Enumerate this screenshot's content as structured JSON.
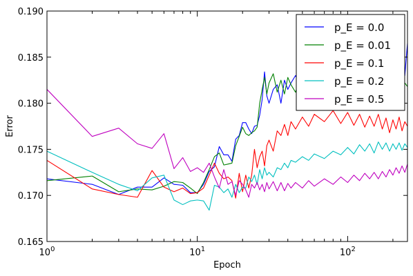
{
  "chart_data": {
    "type": "line",
    "title": "",
    "xlabel": "Epoch",
    "ylabel": "Error",
    "x_scale": "log",
    "xlim": [
      1,
      250
    ],
    "ylim": [
      0.165,
      0.19
    ],
    "x_ticks": [
      {
        "value": 1,
        "base": "10",
        "exp": "0"
      },
      {
        "value": 10,
        "base": "10",
        "exp": "1"
      },
      {
        "value": 100,
        "base": "10",
        "exp": "2"
      }
    ],
    "y_ticks": [
      {
        "value": 0.165,
        "label": "0.165"
      },
      {
        "value": 0.17,
        "label": "0.170"
      },
      {
        "value": 0.175,
        "label": "0.175"
      },
      {
        "value": 0.18,
        "label": "0.180"
      },
      {
        "value": 0.185,
        "label": "0.185"
      },
      {
        "value": 0.19,
        "label": "0.190"
      }
    ],
    "grid": false,
    "legend_position": "top-right",
    "series": [
      {
        "name": "p_E = 0.0",
        "color": "#0000ff",
        "points": [
          [
            1,
            0.1718
          ],
          [
            2,
            0.1712
          ],
          [
            3,
            0.1701
          ],
          [
            4,
            0.1709
          ],
          [
            5,
            0.1709
          ],
          [
            6,
            0.1719
          ],
          [
            7,
            0.1712
          ],
          [
            8,
            0.1711
          ],
          [
            9,
            0.1703
          ],
          [
            10,
            0.1703
          ],
          [
            11,
            0.1712
          ],
          [
            12,
            0.1726
          ],
          [
            13,
            0.1731
          ],
          [
            14,
            0.1753
          ],
          [
            15,
            0.1744
          ],
          [
            16,
            0.1744
          ],
          [
            17,
            0.1737
          ],
          [
            18,
            0.1761
          ],
          [
            19,
            0.1765
          ],
          [
            20,
            0.1779
          ],
          [
            21,
            0.1779
          ],
          [
            22,
            0.1772
          ],
          [
            23,
            0.1767
          ],
          [
            24,
            0.1775
          ],
          [
            25,
            0.1776
          ],
          [
            26,
            0.1787
          ],
          [
            27,
            0.1804
          ],
          [
            28,
            0.1834
          ],
          [
            29,
            0.1808
          ],
          [
            30,
            0.18
          ],
          [
            32,
            0.1815
          ],
          [
            34,
            0.182
          ],
          [
            36,
            0.18
          ],
          [
            38,
            0.1825
          ],
          [
            40,
            0.1815
          ],
          [
            42,
            0.1822
          ],
          [
            45,
            0.183
          ],
          [
            50,
            0.1815
          ],
          [
            55,
            0.1838
          ],
          [
            60,
            0.1822
          ],
          [
            70,
            0.181
          ],
          [
            80,
            0.1835
          ],
          [
            90,
            0.1822
          ],
          [
            100,
            0.1828
          ],
          [
            110,
            0.1812
          ],
          [
            120,
            0.183
          ],
          [
            130,
            0.1818
          ],
          [
            140,
            0.1826
          ],
          [
            150,
            0.1814
          ],
          [
            160,
            0.1832
          ],
          [
            170,
            0.1822
          ],
          [
            180,
            0.1835
          ],
          [
            190,
            0.1826
          ],
          [
            200,
            0.182
          ],
          [
            210,
            0.1838
          ],
          [
            220,
            0.1826
          ],
          [
            230,
            0.1848
          ],
          [
            240,
            0.183
          ],
          [
            250,
            0.1865
          ]
        ]
      },
      {
        "name": "p_E = 0.01",
        "color": "#008000",
        "points": [
          [
            1,
            0.1716
          ],
          [
            2,
            0.1721
          ],
          [
            3,
            0.1704
          ],
          [
            4,
            0.1707
          ],
          [
            5,
            0.1706
          ],
          [
            6,
            0.171
          ],
          [
            7,
            0.1715
          ],
          [
            8,
            0.1714
          ],
          [
            9,
            0.1708
          ],
          [
            10,
            0.1702
          ],
          [
            11,
            0.1714
          ],
          [
            12,
            0.1728
          ],
          [
            13,
            0.1742
          ],
          [
            14,
            0.1746
          ],
          [
            15,
            0.1733
          ],
          [
            16,
            0.1734
          ],
          [
            17,
            0.1735
          ],
          [
            18,
            0.1754
          ],
          [
            19,
            0.1764
          ],
          [
            20,
            0.1774
          ],
          [
            21,
            0.1767
          ],
          [
            22,
            0.1765
          ],
          [
            23,
            0.1768
          ],
          [
            24,
            0.177
          ],
          [
            25,
            0.1774
          ],
          [
            26,
            0.18
          ],
          [
            27,
            0.1815
          ],
          [
            28,
            0.1828
          ],
          [
            29,
            0.181
          ],
          [
            30,
            0.1822
          ],
          [
            32,
            0.1832
          ],
          [
            34,
            0.1812
          ],
          [
            36,
            0.1825
          ],
          [
            38,
            0.181
          ],
          [
            40,
            0.1828
          ],
          [
            42,
            0.182
          ],
          [
            45,
            0.1812
          ],
          [
            50,
            0.1835
          ],
          [
            55,
            0.182
          ],
          [
            60,
            0.1828
          ],
          [
            70,
            0.181
          ],
          [
            80,
            0.1826
          ],
          [
            90,
            0.1815
          ],
          [
            100,
            0.1824
          ],
          [
            110,
            0.181
          ],
          [
            120,
            0.1818
          ],
          [
            130,
            0.1808
          ],
          [
            140,
            0.1825
          ],
          [
            150,
            0.1815
          ],
          [
            160,
            0.182
          ],
          [
            170,
            0.1806
          ],
          [
            180,
            0.1822
          ],
          [
            190,
            0.1812
          ],
          [
            200,
            0.182
          ],
          [
            210,
            0.181
          ],
          [
            220,
            0.1826
          ],
          [
            230,
            0.1812
          ],
          [
            240,
            0.1822
          ],
          [
            250,
            0.1818
          ]
        ]
      },
      {
        "name": "p_E = 0.1",
        "color": "#ff0000",
        "points": [
          [
            1,
            0.1738
          ],
          [
            2,
            0.1707
          ],
          [
            3,
            0.1701
          ],
          [
            4,
            0.1698
          ],
          [
            5,
            0.1727
          ],
          [
            6,
            0.1709
          ],
          [
            7,
            0.1704
          ],
          [
            8,
            0.1708
          ],
          [
            9,
            0.1702
          ],
          [
            10,
            0.1703
          ],
          [
            11,
            0.1708
          ],
          [
            12,
            0.1722
          ],
          [
            13,
            0.1735
          ],
          [
            14,
            0.1724
          ],
          [
            15,
            0.1718
          ],
          [
            16,
            0.172
          ],
          [
            17,
            0.1716
          ],
          [
            18,
            0.1697
          ],
          [
            19,
            0.1724
          ],
          [
            20,
            0.1704
          ],
          [
            21,
            0.1722
          ],
          [
            22,
            0.1708
          ],
          [
            23,
            0.1722
          ],
          [
            24,
            0.175
          ],
          [
            25,
            0.173
          ],
          [
            26,
            0.1742
          ],
          [
            27,
            0.1748
          ],
          [
            28,
            0.1732
          ],
          [
            29,
            0.1754
          ],
          [
            30,
            0.176
          ],
          [
            32,
            0.1748
          ],
          [
            34,
            0.177
          ],
          [
            36,
            0.1765
          ],
          [
            38,
            0.1777
          ],
          [
            40,
            0.1765
          ],
          [
            42,
            0.178
          ],
          [
            45,
            0.1772
          ],
          [
            50,
            0.1785
          ],
          [
            55,
            0.1775
          ],
          [
            60,
            0.1788
          ],
          [
            70,
            0.178
          ],
          [
            80,
            0.1792
          ],
          [
            90,
            0.1778
          ],
          [
            100,
            0.179
          ],
          [
            110,
            0.1776
          ],
          [
            120,
            0.1788
          ],
          [
            130,
            0.1774
          ],
          [
            140,
            0.1786
          ],
          [
            150,
            0.1775
          ],
          [
            160,
            0.1788
          ],
          [
            170,
            0.1772
          ],
          [
            180,
            0.1784
          ],
          [
            190,
            0.1768
          ],
          [
            200,
            0.1782
          ],
          [
            210,
            0.1772
          ],
          [
            220,
            0.1785
          ],
          [
            230,
            0.177
          ],
          [
            240,
            0.178
          ],
          [
            250,
            0.1775
          ]
        ]
      },
      {
        "name": "p_E = 0.2",
        "color": "#00bfbf",
        "points": [
          [
            1,
            0.1748
          ],
          [
            2,
            0.1725
          ],
          [
            3,
            0.1712
          ],
          [
            4,
            0.1705
          ],
          [
            5,
            0.1719
          ],
          [
            6,
            0.1722
          ],
          [
            7,
            0.1695
          ],
          [
            8,
            0.169
          ],
          [
            9,
            0.1694
          ],
          [
            10,
            0.1695
          ],
          [
            11,
            0.1694
          ],
          [
            12,
            0.1684
          ],
          [
            13,
            0.1711
          ],
          [
            14,
            0.1709
          ],
          [
            15,
            0.1703
          ],
          [
            16,
            0.1707
          ],
          [
            17,
            0.1698
          ],
          [
            18,
            0.1712
          ],
          [
            19,
            0.1703
          ],
          [
            20,
            0.1709
          ],
          [
            21,
            0.1708
          ],
          [
            22,
            0.172
          ],
          [
            23,
            0.1715
          ],
          [
            24,
            0.1722
          ],
          [
            25,
            0.1712
          ],
          [
            26,
            0.1728
          ],
          [
            27,
            0.1718
          ],
          [
            28,
            0.173
          ],
          [
            29,
            0.1722
          ],
          [
            30,
            0.1725
          ],
          [
            32,
            0.172
          ],
          [
            34,
            0.173
          ],
          [
            36,
            0.1728
          ],
          [
            38,
            0.1735
          ],
          [
            40,
            0.173
          ],
          [
            42,
            0.1738
          ],
          [
            45,
            0.1736
          ],
          [
            50,
            0.1742
          ],
          [
            55,
            0.1738
          ],
          [
            60,
            0.1745
          ],
          [
            70,
            0.174
          ],
          [
            80,
            0.1748
          ],
          [
            90,
            0.1744
          ],
          [
            100,
            0.1752
          ],
          [
            110,
            0.1745
          ],
          [
            120,
            0.1755
          ],
          [
            130,
            0.1748
          ],
          [
            140,
            0.1756
          ],
          [
            150,
            0.1746
          ],
          [
            160,
            0.1758
          ],
          [
            170,
            0.175
          ],
          [
            180,
            0.1757
          ],
          [
            190,
            0.1748
          ],
          [
            200,
            0.1756
          ],
          [
            210,
            0.175
          ],
          [
            220,
            0.1757
          ],
          [
            230,
            0.1749
          ],
          [
            240,
            0.1756
          ],
          [
            250,
            0.1752
          ]
        ]
      },
      {
        "name": "p_E = 0.5",
        "color": "#bf00bf",
        "points": [
          [
            1,
            0.1815
          ],
          [
            2,
            0.1764
          ],
          [
            3,
            0.1773
          ],
          [
            4,
            0.1756
          ],
          [
            5,
            0.1751
          ],
          [
            6,
            0.1767
          ],
          [
            7,
            0.1729
          ],
          [
            8,
            0.1741
          ],
          [
            9,
            0.1726
          ],
          [
            10,
            0.173
          ],
          [
            11,
            0.1725
          ],
          [
            12,
            0.1735
          ],
          [
            13,
            0.172
          ],
          [
            14,
            0.1708
          ],
          [
            15,
            0.1728
          ],
          [
            16,
            0.1712
          ],
          [
            17,
            0.1715
          ],
          [
            18,
            0.17
          ],
          [
            19,
            0.1716
          ],
          [
            20,
            0.1712
          ],
          [
            21,
            0.1706
          ],
          [
            22,
            0.1698
          ],
          [
            23,
            0.1712
          ],
          [
            24,
            0.1708
          ],
          [
            25,
            0.1714
          ],
          [
            26,
            0.1706
          ],
          [
            27,
            0.1712
          ],
          [
            28,
            0.1704
          ],
          [
            29,
            0.1714
          ],
          [
            30,
            0.1707
          ],
          [
            32,
            0.1715
          ],
          [
            34,
            0.1705
          ],
          [
            36,
            0.1714
          ],
          [
            38,
            0.1705
          ],
          [
            40,
            0.1713
          ],
          [
            42,
            0.1708
          ],
          [
            45,
            0.1714
          ],
          [
            50,
            0.1708
          ],
          [
            55,
            0.1716
          ],
          [
            60,
            0.171
          ],
          [
            70,
            0.1718
          ],
          [
            80,
            0.1712
          ],
          [
            90,
            0.172
          ],
          [
            100,
            0.1714
          ],
          [
            110,
            0.1722
          ],
          [
            120,
            0.1716
          ],
          [
            130,
            0.1724
          ],
          [
            140,
            0.1718
          ],
          [
            150,
            0.1725
          ],
          [
            160,
            0.1718
          ],
          [
            170,
            0.1726
          ],
          [
            180,
            0.172
          ],
          [
            190,
            0.1728
          ],
          [
            200,
            0.1722
          ],
          [
            210,
            0.173
          ],
          [
            220,
            0.1724
          ],
          [
            230,
            0.1732
          ],
          [
            240,
            0.1725
          ],
          [
            250,
            0.1734
          ]
        ]
      }
    ]
  }
}
